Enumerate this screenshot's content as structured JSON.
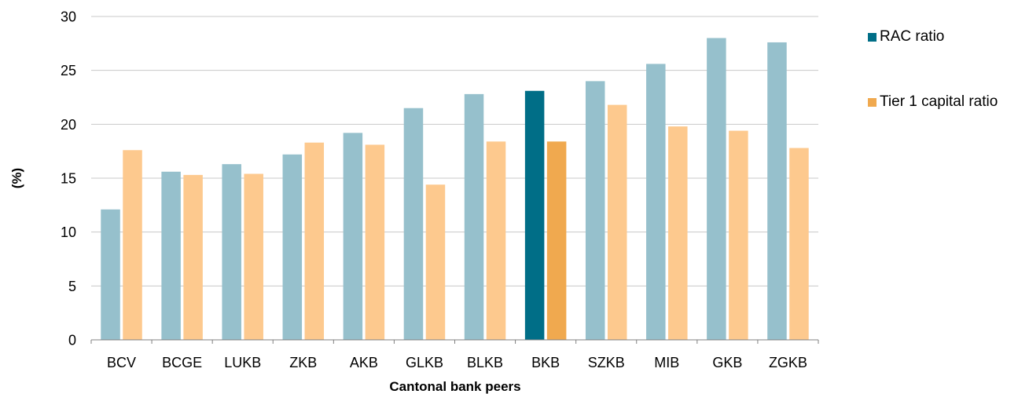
{
  "chart_data": {
    "type": "bar",
    "title": "",
    "xlabel": "Cantonal bank peers",
    "ylabel": "(%)",
    "ylim": [
      0,
      30
    ],
    "yticks": [
      0,
      5,
      10,
      15,
      20,
      25,
      30
    ],
    "grid": true,
    "legend_position": "top-right",
    "categories": [
      "BCV",
      "BCGE",
      "LUKB",
      "ZKB",
      "AKB",
      "GLKB",
      "BLKB",
      "BKB",
      "SZKB",
      "MIB",
      "GKB",
      "ZGKB"
    ],
    "highlight_category": "BKB",
    "series": [
      {
        "name": "RAC ratio",
        "color": "#96c0cc",
        "highlight_color": "#006e87",
        "values": [
          12.1,
          15.6,
          16.3,
          17.2,
          19.2,
          21.5,
          22.8,
          23.1,
          24.0,
          25.6,
          28.0,
          27.6
        ]
      },
      {
        "name": "Tier 1 capital ratio",
        "color": "#fdc98e",
        "highlight_color": "#f0a94f",
        "values": [
          17.6,
          15.3,
          15.4,
          18.3,
          18.1,
          14.4,
          18.4,
          18.4,
          21.8,
          19.8,
          19.4,
          17.8
        ]
      }
    ]
  },
  "legend": {
    "items": [
      {
        "label": "RAC ratio",
        "color": "#006e87"
      },
      {
        "label": "Tier 1 capital ratio",
        "color": "#f0a94f"
      }
    ]
  }
}
